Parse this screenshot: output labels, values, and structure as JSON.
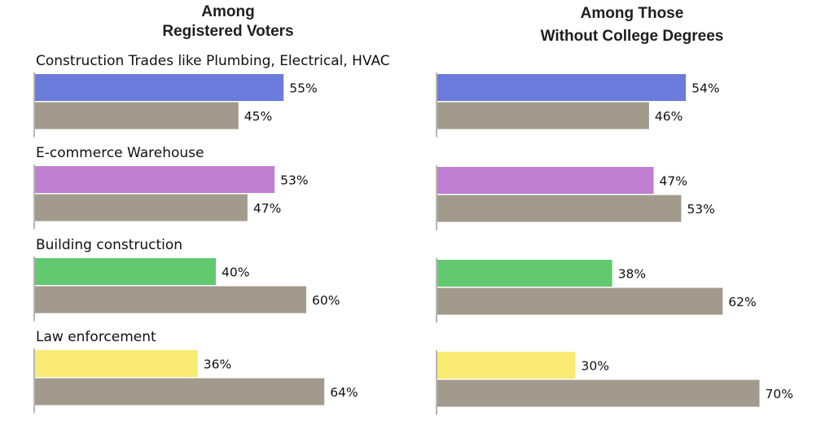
{
  "chart_data": [
    {
      "type": "bar",
      "orientation": "horizontal",
      "title_lines": [
        "Among",
        "Registered Voters"
      ],
      "categories": [
        "Construction Trades like Plumbing, Electrical, HVAC",
        "E-commerce Warehouse",
        "Building construction",
        "Law enforcement"
      ],
      "series": [
        {
          "values": [
            55,
            53,
            40,
            36
          ],
          "colors": [
            "#6a7bdc",
            "#c07fd0",
            "#63c970",
            "#f8ea72"
          ]
        },
        {
          "values": [
            45,
            47,
            60,
            64
          ],
          "color": "#a29a8c"
        }
      ],
      "value_suffix": "%",
      "xlim": [
        0,
        100
      ]
    },
    {
      "type": "bar",
      "orientation": "horizontal",
      "title_lines": [
        "Among Those",
        "Without College Degrees"
      ],
      "categories": [
        "Construction Trades like Plumbing, Electrical, HVAC",
        "E-commerce Warehouse",
        "Building construction",
        "Law enforcement"
      ],
      "series": [
        {
          "values": [
            54,
            47,
            38,
            30
          ],
          "colors": [
            "#6a7bdc",
            "#c07fd0",
            "#63c970",
            "#f8ea72"
          ]
        },
        {
          "values": [
            46,
            53,
            62,
            70
          ],
          "color": "#a29a8c"
        }
      ],
      "value_suffix": "%",
      "xlim": [
        0,
        100
      ]
    }
  ]
}
